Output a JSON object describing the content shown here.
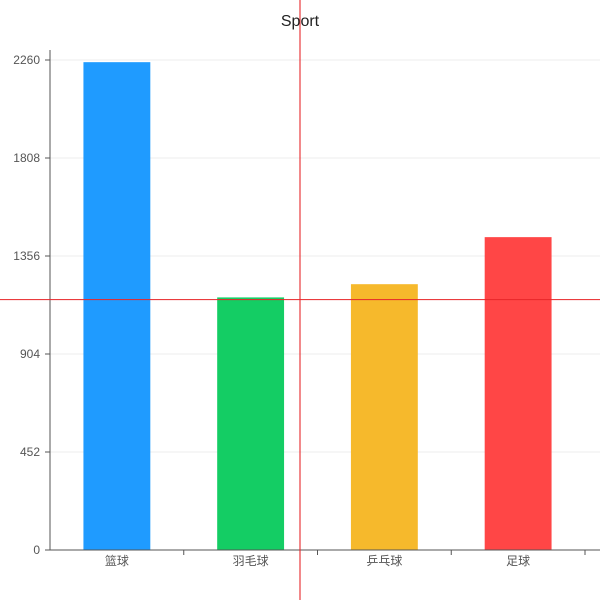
{
  "chart_data": {
    "type": "bar",
    "title": "Sport",
    "categories": [
      "篮球",
      "羽毛球",
      "乒乓球",
      "足球"
    ],
    "values": [
      2250,
      1165,
      1226,
      1443
    ],
    "colors": [
      "#1f9bff",
      "#14cd64",
      "#f6b92c",
      "#ff4646"
    ],
    "ylim": [
      0,
      2260
    ],
    "yticks": [
      0,
      452,
      904,
      1356,
      1808,
      2260
    ],
    "grid": "horizontal",
    "legend": "none",
    "crosshair": {
      "color": "#e8262a",
      "y_value": 1155
    }
  }
}
